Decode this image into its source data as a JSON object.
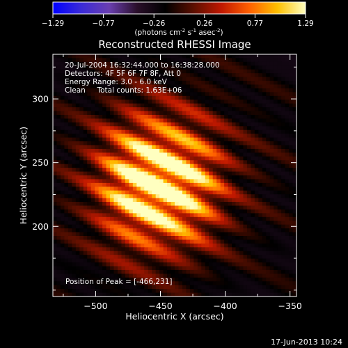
{
  "colors": {
    "background": "#000000",
    "foreground": "#ffffff",
    "colorbar_stops": [
      "#0000ff",
      "#3a2ad8",
      "#6a3fb0",
      "#2a0f2a",
      "#000000",
      "#5a0f00",
      "#c01800",
      "#ff6000",
      "#ffc000",
      "#ffffc0"
    ]
  },
  "colorbar": {
    "ticks": [
      "-1.29",
      "-0.77",
      "-0.26",
      "0.26",
      "0.77",
      "1.29"
    ],
    "units_main": "(photons cm",
    "units_sup1": "-2",
    "units_mid": " s",
    "units_sup2": "-1",
    "units_end": " asec",
    "units_sup3": "-2",
    "units_close": ")"
  },
  "chart_data": {
    "type": "heatmap",
    "title": "Reconstructed RHESSI Image",
    "xlabel": "Heliocentric X (arcsec)",
    "ylabel": "Heliocentric Y (arcsec)",
    "xlim": [
      -533,
      -345
    ],
    "ylim": [
      145,
      335
    ],
    "x_ticks": [
      -500,
      -450,
      -400,
      -350
    ],
    "y_ticks": [
      200,
      250,
      300
    ],
    "x_tick_labels": [
      "−500",
      "−450",
      "−400",
      "−350"
    ],
    "y_tick_labels": [
      "200",
      "250",
      "300"
    ],
    "value_range": [
      -1.29,
      1.29
    ],
    "peak": [
      -466,
      231
    ],
    "sources": [
      {
        "x": -468,
        "y": 233,
        "amplitude": 1.29
      },
      {
        "x": -432,
        "y": 233,
        "amplitude": 1.15
      }
    ],
    "fringe_angle_deg": 63,
    "fringe_period_arcsec": 22,
    "annotations": [
      "20-Jul-2004 16:32:44.000 to 16:38:28.000",
      "Detectors: 4F 5F 6F 7F 8F, Att 0",
      "Energy Range: 3.0 - 6.0 keV",
      "Clean     Total counts: 1.63E+06"
    ],
    "peak_label": "Position of Peak = [-466,231]"
  },
  "timestamp": "17-Jun-2013 10:24"
}
